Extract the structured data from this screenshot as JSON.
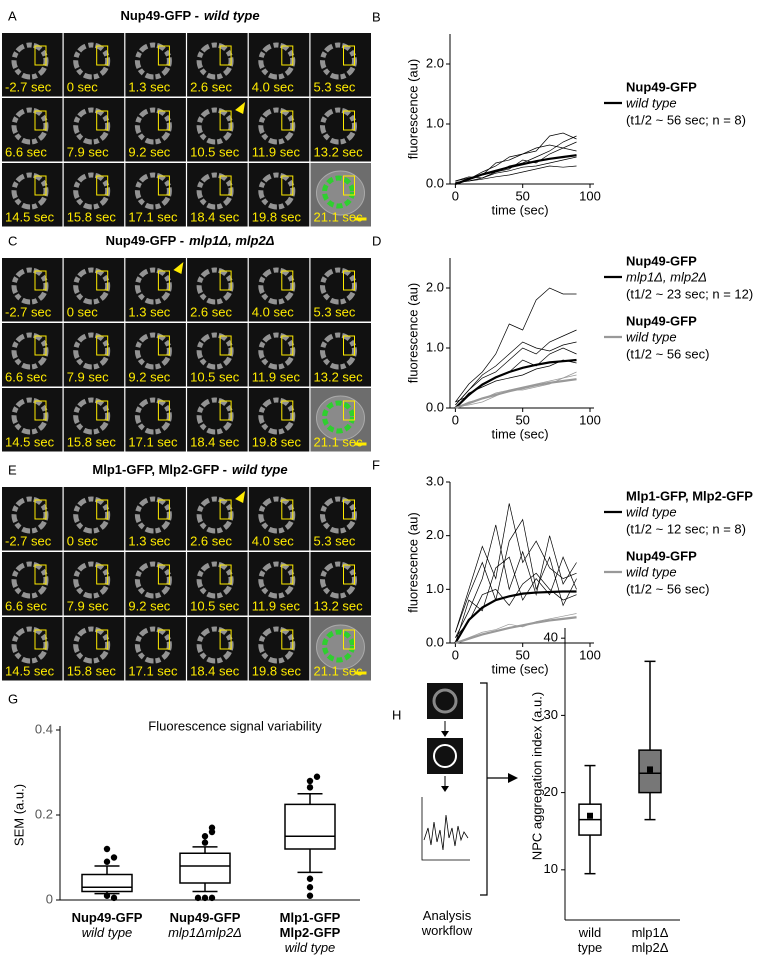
{
  "image_panels": [
    {
      "letter": "A",
      "title": "Nup49-GFP -",
      "title_italic": "wild type",
      "time_labels": [
        "-2.7 sec",
        "0 sec",
        "1.3 sec",
        "2.6 sec",
        "4.0 sec",
        "5.3 sec",
        "6.6 sec",
        "7.9 sec",
        "9.2 sec",
        "10.5 sec",
        "11.9 sec",
        "13.2 sec",
        "14.5 sec",
        "15.8 sec",
        "17.1 sec",
        "18.4 sec",
        "19.8 sec",
        "21.1 sec"
      ]
    },
    {
      "letter": "C",
      "title": "Nup49-GFP -",
      "title_italic": "mlp1Δ, mlp2Δ",
      "time_labels": [
        "-2.7 sec",
        "0 sec",
        "1.3 sec",
        "2.6 sec",
        "4.0 sec",
        "5.3 sec",
        "6.6 sec",
        "7.9 sec",
        "9.2 sec",
        "10.5 sec",
        "11.9 sec",
        "13.2 sec",
        "14.5 sec",
        "15.8 sec",
        "17.1 sec",
        "18.4 sec",
        "19.8 sec",
        "21.1 sec"
      ]
    },
    {
      "letter": "E",
      "title": "Mlp1-GFP, Mlp2-GFP -",
      "title_italic": "wild type",
      "time_labels": [
        "-2.7 sec",
        "0 sec",
        "1.3 sec",
        "2.6 sec",
        "4.0 sec",
        "5.3 sec",
        "6.6 sec",
        "7.9 sec",
        "9.2 sec",
        "10.5 sec",
        "11.9 sec",
        "13.2 sec",
        "14.5 sec",
        "15.8 sec",
        "17.1 sec",
        "18.4 sec",
        "19.8 sec",
        "21.1 sec"
      ]
    }
  ],
  "chart_data": [
    {
      "type": "line",
      "letter": "B",
      "xlabel": "time (sec)",
      "ylabel": "fluorescence (au)",
      "x": [
        0,
        10,
        20,
        30,
        40,
        50,
        60,
        70,
        80,
        90
      ],
      "xlim": [
        -4,
        100
      ],
      "xticks": [
        0,
        50,
        100
      ],
      "ylim": [
        0,
        2.5
      ],
      "yticks": [
        {
          "value": 0,
          "label": "0.0"
        },
        {
          "value": 1,
          "label": "1.0"
        },
        {
          "value": 2,
          "label": "2.0"
        }
      ],
      "traces": [
        {
          "color": "#000",
          "values": [
            0.05,
            0.1,
            0.15,
            0.2,
            0.3,
            0.35,
            0.45,
            0.55,
            0.7,
            0.8
          ]
        },
        {
          "color": "#000",
          "values": [
            0.02,
            0.05,
            0.1,
            0.2,
            0.25,
            0.4,
            0.35,
            0.5,
            0.6,
            0.55
          ]
        },
        {
          "color": "#000",
          "values": [
            0,
            0.08,
            0.2,
            0.3,
            0.45,
            0.5,
            0.6,
            0.65,
            0.6,
            0.7
          ]
        },
        {
          "color": "#000",
          "values": [
            0.03,
            0.05,
            0.08,
            0.12,
            0.15,
            0.2,
            0.25,
            0.3,
            0.28,
            0.3
          ]
        },
        {
          "color": "#000",
          "values": [
            0,
            0.1,
            0.15,
            0.35,
            0.4,
            0.5,
            0.55,
            0.8,
            0.85,
            0.75
          ]
        },
        {
          "color": "#000",
          "values": [
            0.05,
            0.12,
            0.1,
            0.18,
            0.22,
            0.28,
            0.3,
            0.35,
            0.4,
            0.45
          ]
        }
      ],
      "series": [
        {
          "name": "Nup49-GFP",
          "genotype": "wild type",
          "note": "(t1/2 ~ 56 sec; n = 8)",
          "color": "#000",
          "values": [
            0,
            0.08,
            0.16,
            0.22,
            0.28,
            0.33,
            0.38,
            0.42,
            0.45,
            0.48
          ]
        }
      ]
    },
    {
      "type": "line",
      "letter": "D",
      "xlabel": "time (sec)",
      "ylabel": "fluorescence (au)",
      "x": [
        0,
        10,
        20,
        30,
        40,
        50,
        60,
        70,
        80,
        90
      ],
      "xlim": [
        -4,
        100
      ],
      "xticks": [
        0,
        50,
        100
      ],
      "ylim": [
        0,
        2.5
      ],
      "yticks": [
        {
          "value": 0,
          "label": "0.0"
        },
        {
          "value": 1,
          "label": "1.0"
        },
        {
          "value": 2,
          "label": "2.0"
        }
      ],
      "traces": [
        {
          "color": "#000",
          "values": [
            0.1,
            0.4,
            0.6,
            0.9,
            1.4,
            1.3,
            1.8,
            2,
            1.9,
            1.9
          ]
        },
        {
          "color": "#000",
          "values": [
            0.05,
            0.3,
            0.5,
            0.6,
            0.8,
            1,
            0.9,
            1.1,
            1.2,
            1.3
          ]
        },
        {
          "color": "#000",
          "values": [
            0.1,
            0.2,
            0.4,
            0.5,
            0.6,
            0.8,
            0.7,
            0.9,
            1,
            0.9
          ]
        },
        {
          "color": "#000",
          "values": [
            0,
            0.25,
            0.35,
            0.45,
            0.5,
            0.55,
            0.65,
            0.7,
            0.8,
            0.75
          ]
        },
        {
          "color": "#000",
          "values": [
            0.05,
            0.3,
            0.55,
            0.7,
            0.9,
            1.1,
            1,
            0.95,
            1.05,
            1.1
          ]
        },
        {
          "color": "#999",
          "values": [
            0,
            0.1,
            0.15,
            0.25,
            0.3,
            0.35,
            0.4,
            0.45,
            0.5,
            0.55
          ]
        },
        {
          "color": "#999",
          "values": [
            0.02,
            0.05,
            0.1,
            0.2,
            0.3,
            0.3,
            0.35,
            0.4,
            0.5,
            0.6
          ]
        }
      ],
      "series": [
        {
          "name": "Nup49-GFP",
          "genotype": "mlp1Δ, mlp2Δ",
          "note": "(t1/2 ~ 23 sec; n = 12)",
          "color": "#000",
          "values": [
            0,
            0.22,
            0.39,
            0.51,
            0.6,
            0.67,
            0.72,
            0.76,
            0.78,
            0.8
          ]
        },
        {
          "name": "Nup49-GFP",
          "genotype": "wild type",
          "note": "(t1/2 ~ 56 sec)",
          "color": "#999",
          "values": [
            0,
            0.08,
            0.16,
            0.22,
            0.28,
            0.33,
            0.38,
            0.42,
            0.45,
            0.48
          ]
        }
      ]
    },
    {
      "type": "line",
      "letter": "F",
      "xlabel": "time (sec)",
      "ylabel": "fluorescence (au)",
      "x": [
        0,
        10,
        20,
        30,
        40,
        50,
        60,
        70,
        80,
        90
      ],
      "xlim": [
        -4,
        100
      ],
      "xticks": [
        0,
        50,
        100
      ],
      "ylim": [
        0,
        3
      ],
      "yticks": [
        {
          "value": 0,
          "label": "0.0"
        },
        {
          "value": 1,
          "label": "1.0"
        },
        {
          "value": 2,
          "label": "2.0"
        },
        {
          "value": 3,
          "label": "3.0"
        }
      ],
      "traces": [
        {
          "color": "#000",
          "values": [
            0.2,
            1,
            1.8,
            1.2,
            2.6,
            1.5,
            1.9,
            1.4,
            1.2,
            1.3
          ]
        },
        {
          "color": "#000",
          "values": [
            0.1,
            0.6,
            1.2,
            2.2,
            1,
            1.7,
            0.9,
            2,
            1.1,
            1.5
          ]
        },
        {
          "color": "#000",
          "values": [
            0,
            0.8,
            0.6,
            1.4,
            1.6,
            0.8,
            1.2,
            0.9,
            1.6,
            1
          ]
        },
        {
          "color": "#000",
          "values": [
            0.1,
            0.4,
            0.9,
            1,
            0.7,
            1.1,
            1.3,
            1,
            0.8,
            0.9
          ]
        },
        {
          "color": "#000",
          "values": [
            0.2,
            0.9,
            1.5,
            0.8,
            1.9,
            2.3,
            1,
            1.6,
            0.7,
            1.2
          ]
        },
        {
          "color": "#999",
          "values": [
            0,
            0.1,
            0.2,
            0.25,
            0.35,
            0.3,
            0.4,
            0.45,
            0.5,
            0.55
          ]
        }
      ],
      "series": [
        {
          "name": "Mlp1-GFP, Mlp2-GFP",
          "genotype": "wild type",
          "note": "(t1/2 ~ 12 sec; n = 8)",
          "color": "#000",
          "values": [
            0,
            0.43,
            0.66,
            0.8,
            0.87,
            0.92,
            0.94,
            0.95,
            0.96,
            0.96
          ]
        },
        {
          "name": "Nup49-GFP",
          "genotype": "wild type",
          "note": "(t1/2 ~ 56 sec)",
          "color": "#999",
          "values": [
            0,
            0.08,
            0.16,
            0.22,
            0.28,
            0.33,
            0.38,
            0.42,
            0.45,
            0.48
          ]
        }
      ]
    },
    {
      "type": "box",
      "letter": "G",
      "title": "Fluorescence signal variability",
      "ylabel": "SEM (a.u.)",
      "categories": [
        "Nup49-GFP",
        "Nup49-GFP",
        "Mlp1-GFP\nMlp2-GFP"
      ],
      "category_subtitles": [
        "wild type",
        "mlp1Δmlp2Δ",
        "wild type"
      ],
      "ylim": [
        0,
        0.4
      ],
      "yticks": [
        0,
        0.2,
        0.4
      ],
      "box_colors": [
        "#fff",
        "#fff",
        "#fff"
      ],
      "boxes": [
        {
          "whislo": 0.015,
          "q1": 0.02,
          "med": 0.03,
          "q3": 0.06,
          "whishi": 0.08,
          "fliers": [
            0.09,
            0.1,
            0.12,
            0.01,
            0.005
          ]
        },
        {
          "whislo": 0.02,
          "q1": 0.04,
          "med": 0.08,
          "q3": 0.11,
          "whishi": 0.125,
          "fliers": [
            0.135,
            0.15,
            0.16,
            0.17,
            0.005,
            0.005,
            0.005
          ]
        },
        {
          "whislo": 0.065,
          "q1": 0.12,
          "med": 0.15,
          "q3": 0.225,
          "whishi": 0.25,
          "fliers": [
            0.265,
            0.28,
            0.29,
            0.05,
            0.03,
            0.01
          ]
        }
      ]
    },
    {
      "type": "box",
      "letter": "H",
      "ylabel": "NPC aggregation index (a.u.)",
      "categories": [
        "wild\ntype",
        "mlp1Δ\nmlp2Δ"
      ],
      "ylim": [
        3.5,
        40.8
      ],
      "yticks": [
        10,
        20,
        30,
        40
      ],
      "box_colors": [
        "#fff",
        "#777"
      ],
      "boxes": [
        {
          "whislo": 9.5,
          "q1": 14.5,
          "med": 16.5,
          "q3": 18.5,
          "whishi": 23.5,
          "mean": 17
        },
        {
          "whislo": 16.5,
          "q1": 20,
          "med": 22.5,
          "q3": 25.5,
          "whishi": 37,
          "mean": 23
        }
      ]
    }
  ],
  "workflow": {
    "label": "Analysis\nworkflow"
  }
}
